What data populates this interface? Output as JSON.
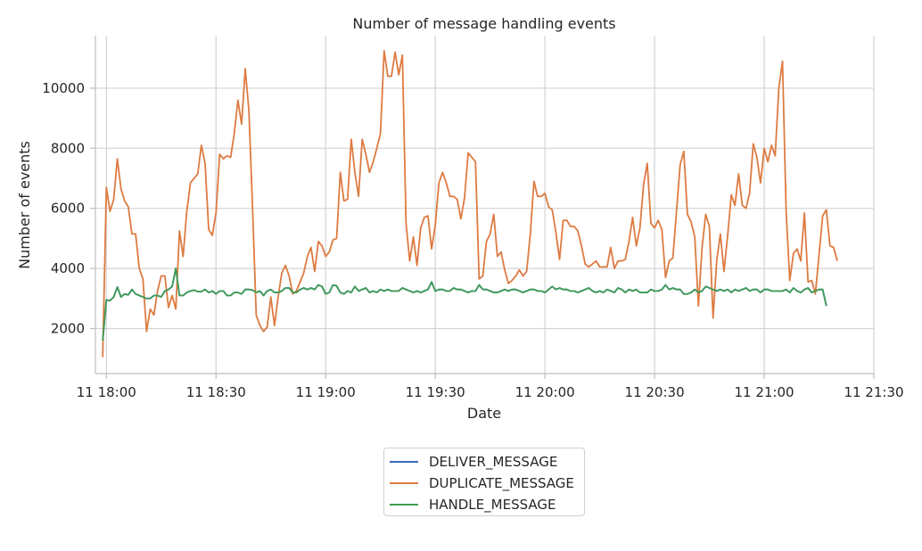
{
  "chart_data": {
    "type": "line",
    "title": "Number of message handling events",
    "xlabel": "Date",
    "ylabel": "Number of events",
    "xlim": [
      "11 17:57",
      "11 21:30"
    ],
    "ylim": [
      500,
      11750
    ],
    "x_ticks": [
      "11 18:00",
      "11 18:30",
      "11 19:00",
      "11 19:30",
      "11 20:00",
      "11 20:30",
      "11 21:00",
      "11 21:30"
    ],
    "y_ticks": [
      2000,
      4000,
      6000,
      8000,
      10000
    ],
    "grid": true,
    "legend_position": "bottom-center",
    "x_start": "11 17:59",
    "x_step_minutes": 1,
    "series": [
      {
        "name": "DELIVER_MESSAGE",
        "color": "#3a6bbf",
        "values": [
          1600,
          2950,
          2930,
          3050,
          3380,
          3050,
          3150,
          3120,
          3300,
          3150,
          3100,
          3050,
          3000,
          3000,
          3100,
          3100,
          3050,
          3250,
          3300,
          3400,
          4000,
          3100,
          3100,
          3200,
          3250,
          3280,
          3230,
          3230,
          3300,
          3200,
          3250,
          3150,
          3250,
          3250,
          3100,
          3100,
          3200,
          3200,
          3150,
          3300,
          3300,
          3280,
          3200,
          3250,
          3100,
          3250,
          3300,
          3200,
          3200,
          3250,
          3350,
          3350,
          3200,
          3200,
          3300,
          3350,
          3300,
          3350,
          3300,
          3450,
          3400,
          3150,
          3200,
          3450,
          3420,
          3200,
          3150,
          3250,
          3200,
          3400,
          3250,
          3300,
          3350,
          3200,
          3250,
          3200,
          3300,
          3250,
          3300,
          3250,
          3250,
          3250,
          3350,
          3300,
          3250,
          3200,
          3250,
          3200,
          3250,
          3300,
          3550,
          3250,
          3300,
          3300,
          3250,
          3250,
          3350,
          3300,
          3300,
          3250,
          3200,
          3250,
          3250,
          3450,
          3300,
          3300,
          3250,
          3200,
          3200,
          3250,
          3300,
          3250,
          3300,
          3300,
          3250,
          3200,
          3250,
          3300,
          3300,
          3250,
          3250,
          3200,
          3300,
          3400,
          3300,
          3350,
          3300,
          3300,
          3250,
          3250,
          3200,
          3250,
          3300,
          3350,
          3250,
          3200,
          3250,
          3200,
          3300,
          3250,
          3200,
          3350,
          3300,
          3200,
          3300,
          3250,
          3300,
          3200,
          3200,
          3200,
          3300,
          3250,
          3250,
          3300,
          3450,
          3300,
          3350,
          3300,
          3300,
          3150,
          3150,
          3200,
          3300,
          3200,
          3250,
          3400,
          3350,
          3300,
          3250,
          3300,
          3250,
          3300,
          3200,
          3300,
          3250,
          3300,
          3350,
          3250,
          3300,
          3300,
          3200,
          3300,
          3300,
          3250,
          3250,
          3250,
          3250,
          3300,
          3200,
          3350,
          3250,
          3200,
          3300,
          3350,
          3200,
          3250,
          3300,
          3300,
          2750
        ]
      },
      {
        "name": "DUPLICATE_MESSAGE",
        "color": "#dd7b42",
        "values": [
          1050,
          6700,
          5900,
          6300,
          7650,
          6650,
          6250,
          6050,
          5150,
          5150,
          4000,
          3650,
          1900,
          2650,
          2450,
          3250,
          3750,
          3750,
          2700,
          3100,
          2650,
          5250,
          4400,
          5900,
          6850,
          7000,
          7150,
          8100,
          7500,
          5300,
          5100,
          5850,
          7800,
          7650,
          7750,
          7700,
          8500,
          9600,
          8800,
          10650,
          9250,
          6000,
          2450,
          2100,
          1900,
          2050,
          3050,
          2100,
          3050,
          3850,
          4100,
          3750,
          3150,
          3250,
          3550,
          3850,
          4400,
          4700,
          3900,
          4900,
          4750,
          4400,
          4550,
          4950,
          5000,
          7200,
          6250,
          6300,
          8300,
          7200,
          6400,
          8300,
          7800,
          7200,
          7550,
          8000,
          8500,
          11250,
          10400,
          10400,
          11200,
          10450,
          11100,
          5500,
          4250,
          5050,
          4100,
          5350,
          5700,
          5750,
          4650,
          5450,
          6850,
          7200,
          6850,
          6400,
          6400,
          6300,
          5650,
          6350,
          7850,
          7700,
          7550,
          3650,
          3750,
          4900,
          5150,
          5800,
          4400,
          4550,
          3950,
          3500,
          3600,
          3750,
          3950,
          3750,
          3900,
          5150,
          6900,
          6400,
          6400,
          6500,
          6050,
          5950,
          5200,
          4300,
          5600,
          5600,
          5400,
          5400,
          5250,
          4750,
          4150,
          4050,
          4150,
          4250,
          4050,
          4050,
          4050,
          4700,
          4000,
          4250,
          4250,
          4300,
          4900,
          5700,
          4750,
          5350,
          6800,
          7500,
          5500,
          5350,
          5600,
          5300,
          3700,
          4250,
          4350,
          5900,
          7450,
          7900,
          5800,
          5550,
          5050,
          2750,
          4700,
          5800,
          5400,
          2350,
          4250,
          5150,
          3900,
          5100,
          6450,
          6100,
          7150,
          6100,
          6000,
          6500,
          8150,
          7700,
          6850,
          8000,
          7550,
          8100,
          7750,
          10000,
          10900,
          5900,
          3600,
          4500,
          4650,
          4250,
          5850,
          3550,
          3600,
          3150,
          4450,
          5750,
          5950,
          4750,
          4700,
          4250
        ]
      },
      {
        "name": "HANDLE_MESSAGE",
        "color": "#3f9b55",
        "values": [
          1600,
          2950,
          2930,
          3050,
          3380,
          3050,
          3150,
          3120,
          3300,
          3150,
          3100,
          3050,
          3000,
          3000,
          3100,
          3100,
          3050,
          3250,
          3300,
          3400,
          4000,
          3100,
          3100,
          3200,
          3250,
          3280,
          3230,
          3230,
          3300,
          3200,
          3250,
          3150,
          3250,
          3250,
          3100,
          3100,
          3200,
          3200,
          3150,
          3300,
          3300,
          3280,
          3200,
          3250,
          3100,
          3250,
          3300,
          3200,
          3200,
          3250,
          3350,
          3350,
          3200,
          3200,
          3300,
          3350,
          3300,
          3350,
          3300,
          3450,
          3400,
          3150,
          3200,
          3450,
          3420,
          3200,
          3150,
          3250,
          3200,
          3400,
          3250,
          3300,
          3350,
          3200,
          3250,
          3200,
          3300,
          3250,
          3300,
          3250,
          3250,
          3250,
          3350,
          3300,
          3250,
          3200,
          3250,
          3200,
          3250,
          3300,
          3550,
          3250,
          3300,
          3300,
          3250,
          3250,
          3350,
          3300,
          3300,
          3250,
          3200,
          3250,
          3250,
          3450,
          3300,
          3300,
          3250,
          3200,
          3200,
          3250,
          3300,
          3250,
          3300,
          3300,
          3250,
          3200,
          3250,
          3300,
          3300,
          3250,
          3250,
          3200,
          3300,
          3400,
          3300,
          3350,
          3300,
          3300,
          3250,
          3250,
          3200,
          3250,
          3300,
          3350,
          3250,
          3200,
          3250,
          3200,
          3300,
          3250,
          3200,
          3350,
          3300,
          3200,
          3300,
          3250,
          3300,
          3200,
          3200,
          3200,
          3300,
          3250,
          3250,
          3300,
          3450,
          3300,
          3350,
          3300,
          3300,
          3150,
          3150,
          3200,
          3300,
          3200,
          3250,
          3400,
          3350,
          3300,
          3250,
          3300,
          3250,
          3300,
          3200,
          3300,
          3250,
          3300,
          3350,
          3250,
          3300,
          3300,
          3200,
          3300,
          3300,
          3250,
          3250,
          3250,
          3250,
          3300,
          3200,
          3350,
          3250,
          3200,
          3300,
          3350,
          3200,
          3250,
          3300,
          3300,
          2750
        ]
      }
    ]
  }
}
